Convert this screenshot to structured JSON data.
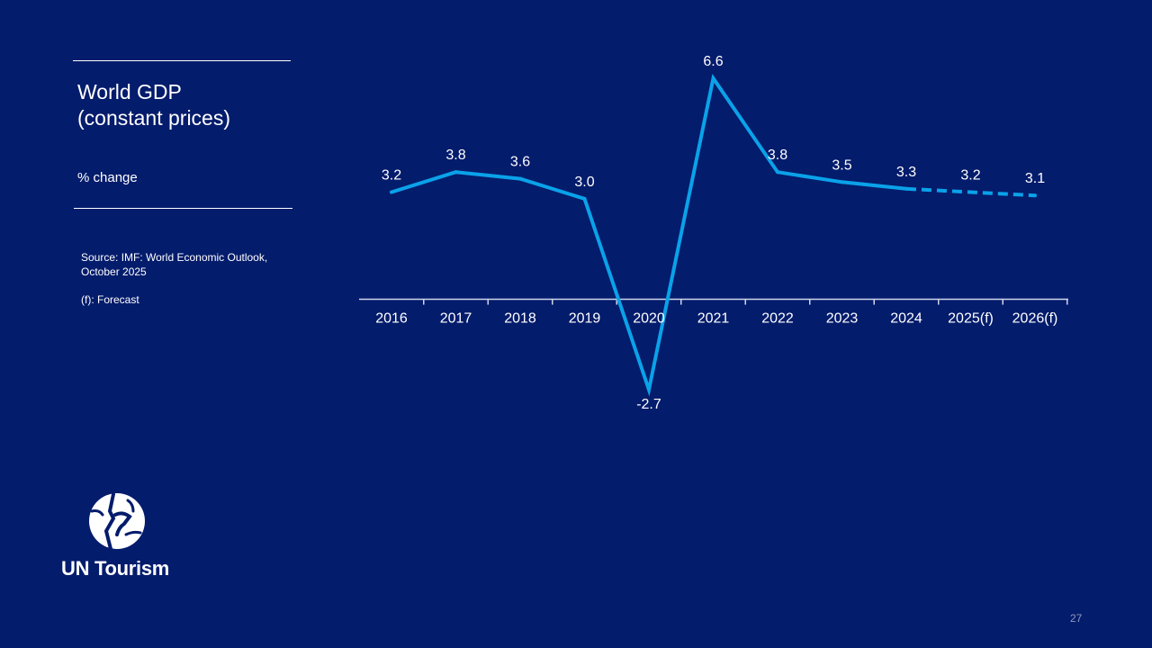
{
  "slide": {
    "title_line1": "World GDP",
    "title_line2": "(constant prices)",
    "subtitle": "% change",
    "source_line1": "Source: IMF: World Economic Outlook,",
    "source_line2": "October 2025",
    "forecast_note": "(f): Forecast",
    "brand": "UN Tourism",
    "logo_icon": "un-tourism-globe-icon",
    "page_number": "27"
  },
  "colors": {
    "background": "#041c6c",
    "line": "#0aa2e9",
    "text": "#ffffff"
  },
  "chart_data": {
    "type": "line",
    "categories": [
      "2016",
      "2017",
      "2018",
      "2019",
      "2020",
      "2021",
      "2022",
      "2023",
      "2024",
      "2025(f)",
      "2026(f)"
    ],
    "values": [
      3.2,
      3.8,
      3.6,
      3.0,
      -2.7,
      6.6,
      3.8,
      3.5,
      3.3,
      3.2,
      3.1
    ],
    "data_labels": [
      "3.2",
      "3.8",
      "3.6",
      "3.0",
      "-2.7",
      "6.6",
      "3.8",
      "3.5",
      "3.3",
      "3.2",
      "3.1"
    ],
    "forecast_from_index": 8,
    "forecast_style": "dashed",
    "title": "World GDP (constant prices)",
    "ylabel": "% change",
    "ylim": [
      -2.7,
      6.6
    ],
    "grid": false,
    "legend": "none"
  }
}
